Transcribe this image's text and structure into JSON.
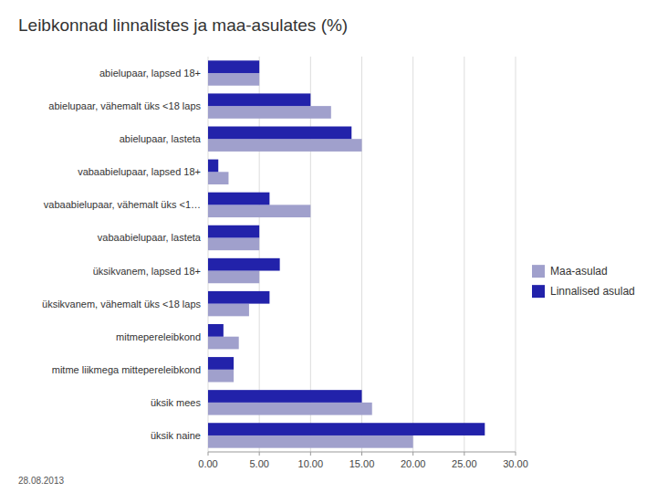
{
  "chart_data": {
    "type": "bar",
    "orientation": "horizontal",
    "title": "Leibkonnad linnalistes ja maa-asulates (%)",
    "categories": [
      "abielupaar, lapsed 18+",
      "abielupaar, vähemalt üks <18 laps",
      "abielupaar, lasteta",
      "vabaabielupaar, lapsed 18+",
      "vabaabielupaar, vähemalt üks <1…",
      "vabaabielupaar, lasteta",
      "üksikvanem, lapsed 18+",
      "üksikvanem, vähemalt üks <18 laps",
      "mitmepereleibkond",
      "mitme liikmega mittepereleibkond",
      "üksik mees",
      "üksik naine"
    ],
    "series": [
      {
        "name": "Maa-asulad",
        "color": "#a0a0cc",
        "values": [
          5.0,
          12.0,
          15.0,
          2.0,
          10.0,
          5.0,
          5.0,
          4.0,
          3.0,
          2.5,
          16.0,
          20.0
        ]
      },
      {
        "name": "Linnalised asulad",
        "color": "#2222aa",
        "values": [
          5.0,
          10.0,
          14.0,
          1.0,
          6.0,
          5.0,
          7.0,
          6.0,
          1.5,
          2.5,
          15.0,
          27.0
        ]
      }
    ],
    "xlim": [
      0,
      30
    ],
    "xticks": [
      {
        "value": 0,
        "label": "0.00"
      },
      {
        "value": 5,
        "label": "5.00"
      },
      {
        "value": 10,
        "label": "10.00"
      },
      {
        "value": 15,
        "label": "15.00"
      },
      {
        "value": 20,
        "label": "20.00"
      },
      {
        "value": 25,
        "label": "25.00"
      },
      {
        "value": 30,
        "label": "30.00"
      }
    ],
    "grid": true,
    "legend": "right",
    "annotations": [
      "28.08.2013"
    ]
  }
}
